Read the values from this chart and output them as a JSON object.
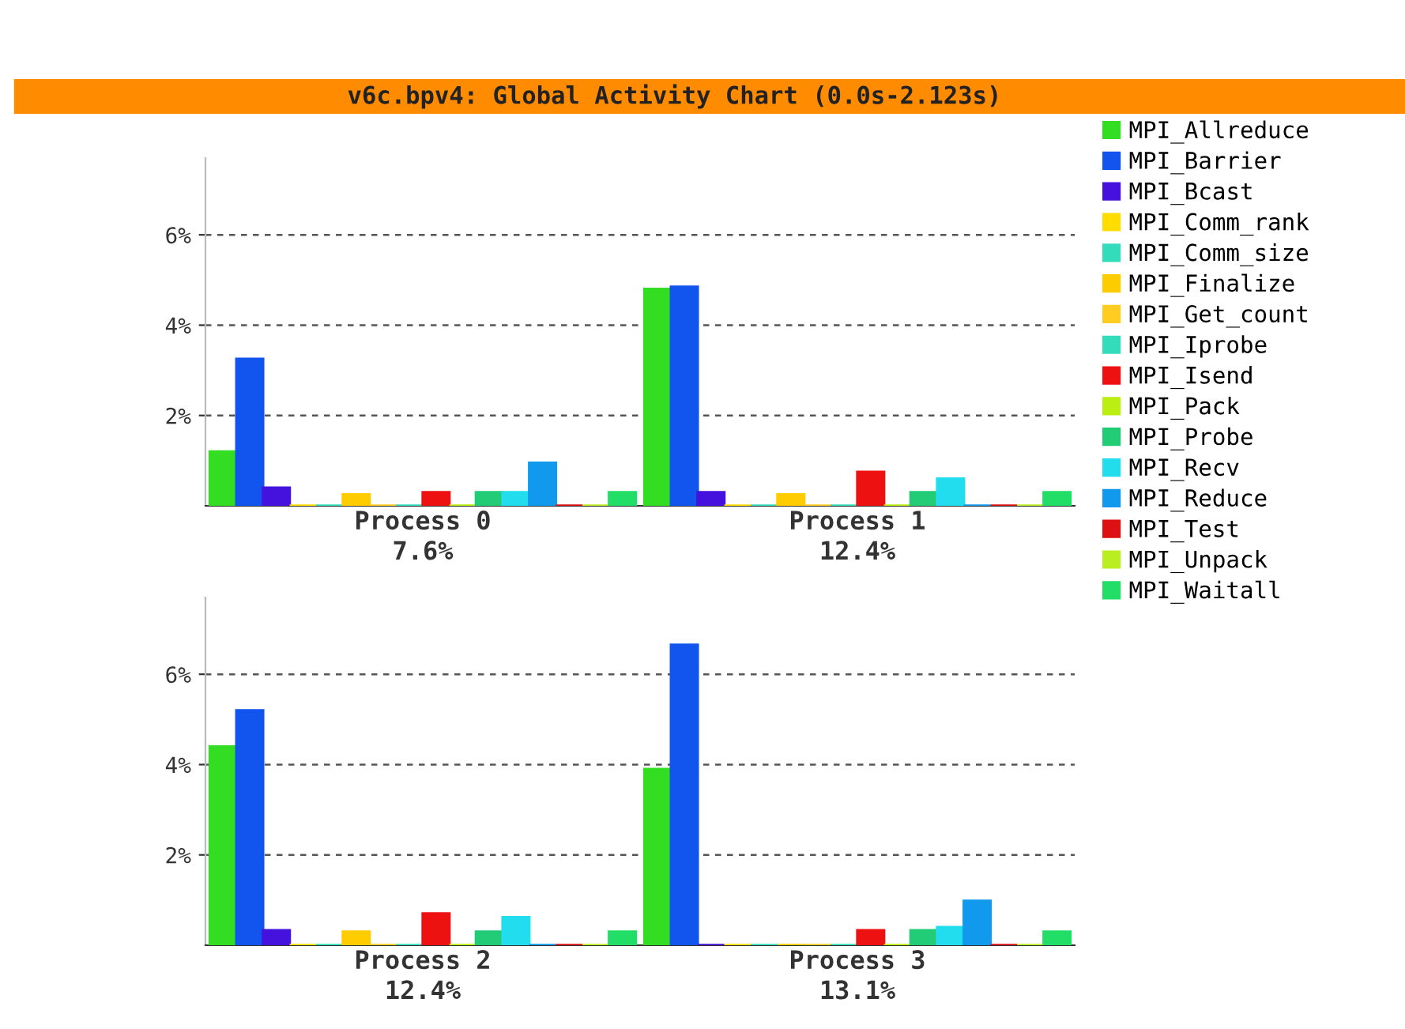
{
  "chart_data": [
    {
      "type": "bar",
      "title": "v6c.bpv4: Global Activity Chart (0.0s-2.123s)",
      "categories": [
        "Process 0\n7.6%",
        "Process 1\n12.4%"
      ],
      "ylim": [
        0,
        7.7
      ],
      "yticks": [
        {
          "value": 2,
          "label": "2%"
        },
        {
          "value": 4,
          "label": "4%"
        },
        {
          "value": 6,
          "label": "6%"
        }
      ],
      "grid": "y",
      "legend": "right",
      "series": [
        {
          "name": "MPI_Allreduce",
          "color": "#33dd22",
          "values": [
            1.2,
            4.8
          ]
        },
        {
          "name": "MPI_Barrier",
          "color": "#1155ee",
          "values": [
            3.25,
            4.85
          ]
        },
        {
          "name": "MPI_Bcast",
          "color": "#4411dd",
          "values": [
            0.4,
            0.3
          ]
        },
        {
          "name": "MPI_Comm_rank",
          "color": "#ffdd00",
          "values": [
            0,
            0
          ]
        },
        {
          "name": "MPI_Comm_size",
          "color": "#33ddbb",
          "values": [
            0,
            0
          ]
        },
        {
          "name": "MPI_Finalize",
          "color": "#ffcc00",
          "values": [
            0.25,
            0.25
          ]
        },
        {
          "name": "MPI_Get_count",
          "color": "#ffcc22",
          "values": [
            0,
            0
          ]
        },
        {
          "name": "MPI_Iprobe",
          "color": "#33ddbb",
          "values": [
            0,
            0
          ]
        },
        {
          "name": "MPI_Isend",
          "color": "#ee1111",
          "values": [
            0.3,
            0.75
          ]
        },
        {
          "name": "MPI_Pack",
          "color": "#bbee11",
          "values": [
            0,
            0
          ]
        },
        {
          "name": "MPI_Probe",
          "color": "#22cc77",
          "values": [
            0.3,
            0.3
          ]
        },
        {
          "name": "MPI_Recv",
          "color": "#22ddee",
          "values": [
            0.3,
            0.6
          ]
        },
        {
          "name": "MPI_Reduce",
          "color": "#1199ee",
          "values": [
            0.95,
            0
          ]
        },
        {
          "name": "MPI_Test",
          "color": "#dd1111",
          "values": [
            0,
            0
          ]
        },
        {
          "name": "MPI_Unpack",
          "color": "#bbee22",
          "values": [
            0,
            0
          ]
        },
        {
          "name": "MPI_Waitall",
          "color": "#22dd66",
          "values": [
            0.3,
            0.3
          ]
        }
      ]
    },
    {
      "type": "bar",
      "categories": [
        "Process 2\n12.4%",
        "Process 3\n13.1%"
      ],
      "ylim": [
        0,
        7.7
      ],
      "yticks": [
        {
          "value": 2,
          "label": "2%"
        },
        {
          "value": 4,
          "label": "4%"
        },
        {
          "value": 6,
          "label": "6%"
        }
      ],
      "grid": "y",
      "legend": false,
      "series": [
        {
          "color": "#33dd22",
          "values": [
            4.4,
            3.9
          ]
        },
        {
          "color": "#1155ee",
          "values": [
            5.2,
            6.65
          ]
        },
        {
          "color": "#4411dd",
          "values": [
            0.33,
            0
          ]
        },
        {
          "color": "#ffdd00",
          "values": [
            0,
            0
          ]
        },
        {
          "color": "#33ddbb",
          "values": [
            0,
            0
          ]
        },
        {
          "color": "#ffcc00",
          "values": [
            0.3,
            0
          ]
        },
        {
          "color": "#ffcc22",
          "values": [
            0,
            0
          ]
        },
        {
          "color": "#33ddbb",
          "values": [
            0,
            0
          ]
        },
        {
          "color": "#ee1111",
          "values": [
            0.7,
            0.33
          ]
        },
        {
          "color": "#bbee11",
          "values": [
            0,
            0
          ]
        },
        {
          "color": "#22cc77",
          "values": [
            0.3,
            0.33
          ]
        },
        {
          "color": "#22ddee",
          "values": [
            0.62,
            0.4
          ]
        },
        {
          "color": "#1199ee",
          "values": [
            0,
            0.98
          ]
        },
        {
          "color": "#dd1111",
          "values": [
            0,
            0
          ]
        },
        {
          "color": "#bbee22",
          "values": [
            0,
            0
          ]
        },
        {
          "color": "#22dd66",
          "values": [
            0.3,
            0.3
          ]
        }
      ]
    }
  ]
}
